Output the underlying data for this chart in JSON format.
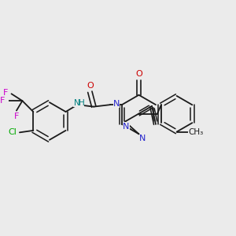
{
  "background_color": "#ebebeb",
  "bond_color": "#1a1a1a",
  "figsize": [
    3.0,
    3.0
  ],
  "dpi": 100,
  "F_color": "#cc00cc",
  "Cl_color": "#00aa00",
  "N_color": "#2222cc",
  "O_color": "#cc0000",
  "NH_color": "#008080",
  "C_color": "#1a1a1a",
  "xlim": [
    0.0,
    5.8
  ],
  "ylim": [
    0.5,
    4.5
  ]
}
